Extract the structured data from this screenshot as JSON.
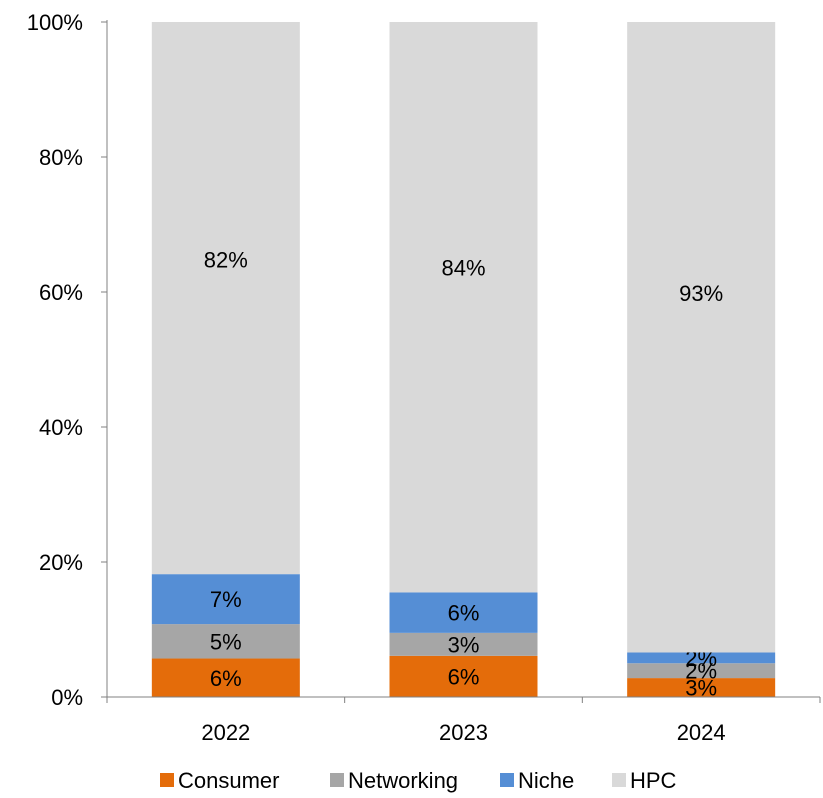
{
  "chart_data": {
    "type": "bar",
    "stacked": true,
    "percent_stacked": true,
    "categories": [
      "2022",
      "2023",
      "2024"
    ],
    "series": [
      {
        "name": "Consumer",
        "color": "#E46C0A",
        "values": [
          5.7,
          6.1,
          2.8
        ],
        "labels": [
          "6%",
          "6%",
          "3%"
        ]
      },
      {
        "name": "Networking",
        "color": "#A6A6A6",
        "values": [
          5.1,
          3.4,
          2.2
        ],
        "labels": [
          "5%",
          "3%",
          "2%"
        ]
      },
      {
        "name": "Niche",
        "color": "#558ED5",
        "values": [
          7.4,
          6.0,
          1.6
        ],
        "labels": [
          "7%",
          "6%",
          "2%"
        ]
      },
      {
        "name": "HPC",
        "color": "#D9D9D9",
        "values": [
          81.8,
          84.5,
          93.4
        ],
        "labels": [
          "82%",
          "84%",
          "93%"
        ]
      }
    ],
    "ylim": [
      0,
      100
    ],
    "yticks": [
      "0%",
      "20%",
      "40%",
      "60%",
      "80%",
      "100%"
    ],
    "ytick_values": [
      0,
      20,
      40,
      60,
      80,
      100
    ],
    "legend_position": "bottom",
    "grid": false
  }
}
